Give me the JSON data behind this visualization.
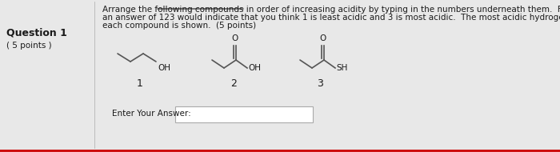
{
  "bg_color": "#e8e8e8",
  "content_bg": "#f0eeee",
  "title": "Question 1",
  "points": "( 5 points )",
  "instruction_line1": "Arrange the following compounds in order of increasing acidity by typing in the numbers underneath them.  For example,",
  "instruction_line2": "an answer of 123 would indicate that you think 1 is least acidic and 3 is most acidic.  The most acidic hydrogen atom of",
  "instruction_line3": "each compound is shown.  (5 points)",
  "underline_word": "increasing acidity",
  "compound_labels": [
    "1",
    "2",
    "3"
  ],
  "answer_label": "Enter Your Answer:",
  "font_size_title": 9,
  "font_size_body": 7.5,
  "font_size_compound": 9,
  "border_color": "#cc0000",
  "text_color": "#1a1a1a"
}
